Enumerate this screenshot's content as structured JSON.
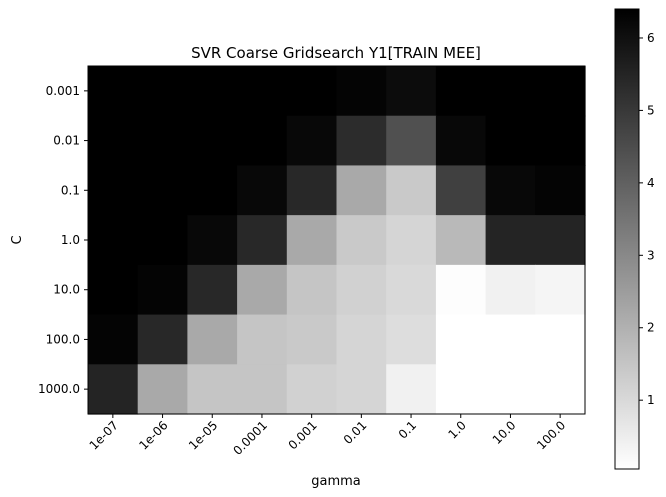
{
  "chart_data": {
    "type": "heatmap",
    "title": "SVR Coarse Gridsearch Y1[TRAIN MEE]",
    "xlabel": "gamma",
    "ylabel": "C",
    "x_categories": [
      "1e-07",
      "1e-06",
      "1e-05",
      "0.0001",
      "0.001",
      "0.01",
      "0.1",
      "1.0",
      "10.0",
      "100.0"
    ],
    "y_categories": [
      "0.001",
      "0.01",
      "0.1",
      "1.0",
      "10.0",
      "100.0",
      "1000.0"
    ],
    "values": [
      [
        6.4,
        6.4,
        6.4,
        6.4,
        6.4,
        6.3,
        6.1,
        6.4,
        6.4,
        6.4
      ],
      [
        6.4,
        6.4,
        6.4,
        6.4,
        6.2,
        5.3,
        4.4,
        6.2,
        6.4,
        6.4
      ],
      [
        6.4,
        6.4,
        6.4,
        6.2,
        5.4,
        2.2,
        1.4,
        4.8,
        6.2,
        6.3
      ],
      [
        6.4,
        6.4,
        6.2,
        5.4,
        2.2,
        1.4,
        1.1,
        1.8,
        5.5,
        5.5
      ],
      [
        6.4,
        6.3,
        5.4,
        2.2,
        1.5,
        1.2,
        1.0,
        0.1,
        0.4,
        0.3
      ],
      [
        6.3,
        5.4,
        2.2,
        1.5,
        1.4,
        1.1,
        0.9,
        0.05,
        0.05,
        0.05
      ],
      [
        5.5,
        2.2,
        1.5,
        1.5,
        1.2,
        1.1,
        0.4,
        0.05,
        0.05,
        0.05
      ]
    ],
    "colormap": "gray_r",
    "colorbar": {
      "min": 0.05,
      "max": 6.4,
      "ticks": [
        1,
        2,
        3,
        4,
        5,
        6
      ]
    }
  }
}
